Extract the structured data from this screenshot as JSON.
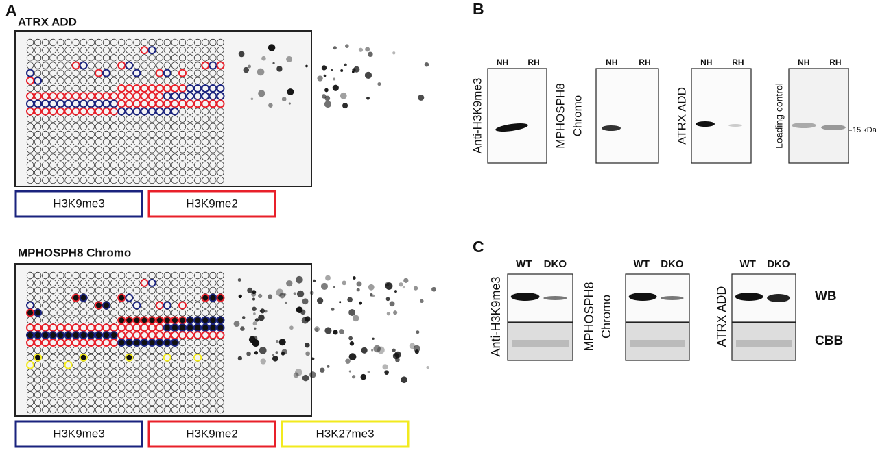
{
  "panel_a": {
    "label": "A",
    "arrays": [
      {
        "title": "ATRX ADD",
        "legend": [
          "H3K9me3",
          "H3K9me2"
        ]
      },
      {
        "title": "MPHOSPH8 Chromo",
        "legend": [
          "H3K9me3",
          "H3K9me2",
          "H3K27me3"
        ]
      }
    ]
  },
  "panel_b": {
    "label": "B",
    "blots": [
      {
        "lanes": [
          "NH",
          "RH"
        ],
        "antibody": [
          "Anti-H3K9me3"
        ]
      },
      {
        "lanes": [
          "NH",
          "RH"
        ],
        "antibody": [
          "MPHOSPH8",
          "Chromo"
        ]
      },
      {
        "lanes": [
          "NH",
          "RH"
        ],
        "antibody": [
          "ATRX ADD"
        ]
      },
      {
        "lanes": [
          "NH",
          "RH"
        ],
        "antibody": [
          "Loading control"
        ]
      }
    ],
    "marker": "15 kDa"
  },
  "panel_c": {
    "label": "C",
    "blots": [
      {
        "lanes": [
          "WT",
          "DKO"
        ],
        "antibody": [
          "Anti-H3K9me3"
        ]
      },
      {
        "lanes": [
          "WT",
          "DKO"
        ],
        "antibody": [
          "MPHOSPH8",
          "Chromo"
        ]
      },
      {
        "lanes": [
          "WT",
          "DKO"
        ],
        "antibody": [
          "ATRX ADD"
        ]
      }
    ],
    "rows": [
      "WB",
      "CBB"
    ]
  }
}
